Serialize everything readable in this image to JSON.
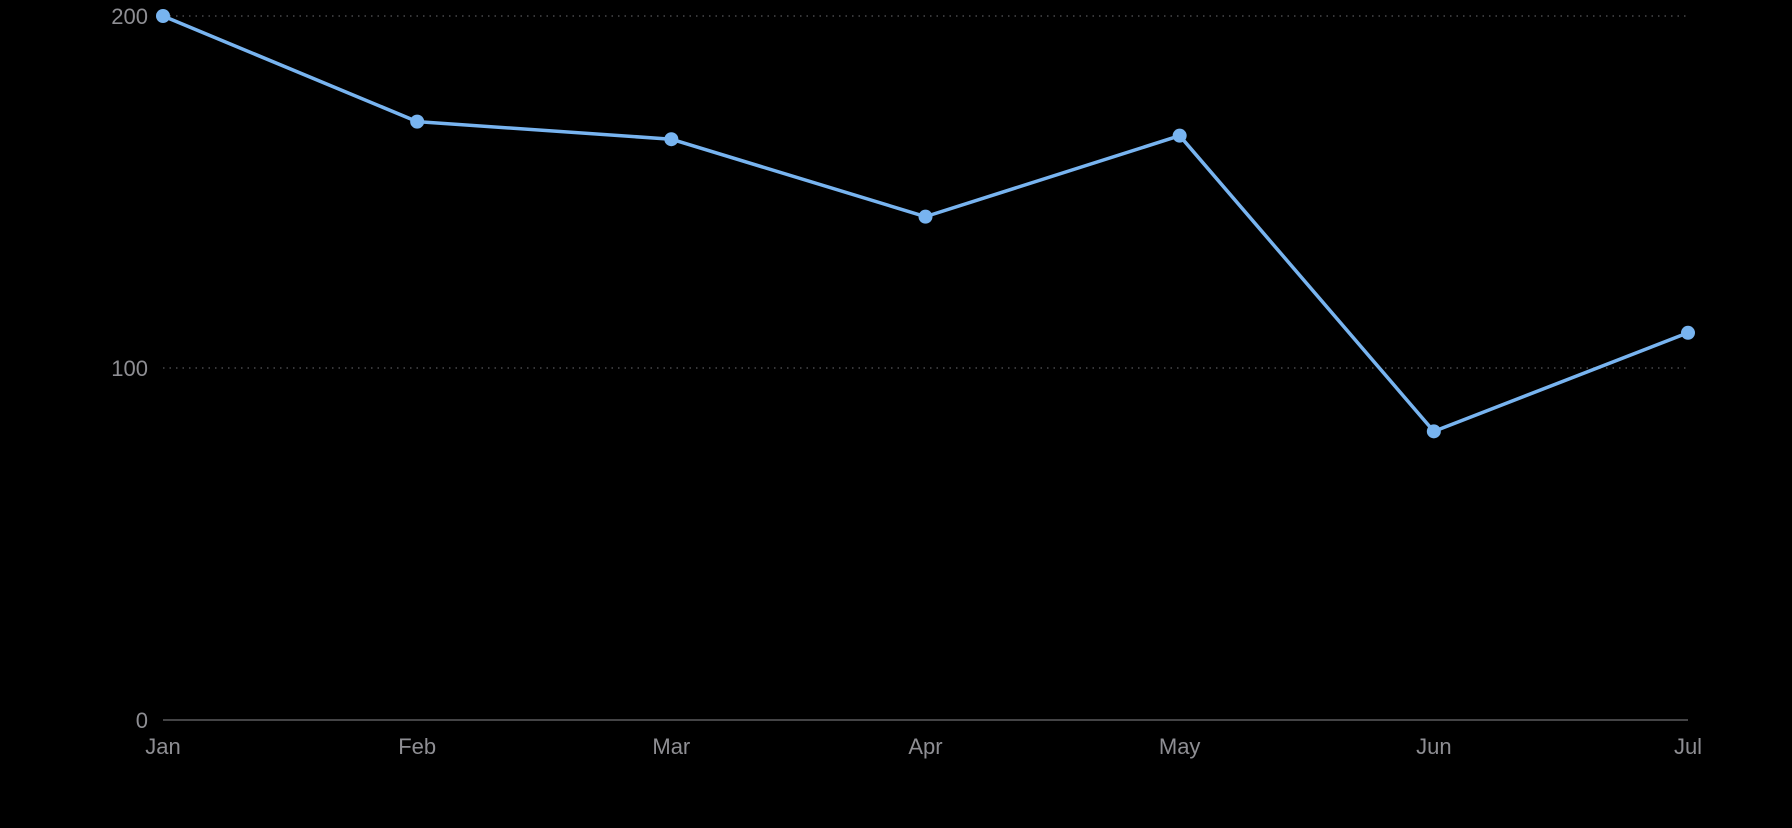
{
  "chart_data": {
    "type": "line",
    "categories": [
      "Jan",
      "Feb",
      "Mar",
      "Apr",
      "May",
      "Jun",
      "Jul"
    ],
    "series": [
      {
        "values": [
          200,
          170,
          165,
          143,
          166,
          82,
          110
        ],
        "color": "#78b4f0"
      }
    ],
    "y_ticks": [
      0,
      100,
      200
    ],
    "ylim": [
      0,
      200
    ],
    "title": "",
    "xlabel": "",
    "ylabel": "",
    "grid": true,
    "gridline_style": "dotted",
    "legend": "none",
    "background_color": "#000000",
    "label_color": "#8e8e93",
    "axis_color": "#5a5a5e"
  }
}
